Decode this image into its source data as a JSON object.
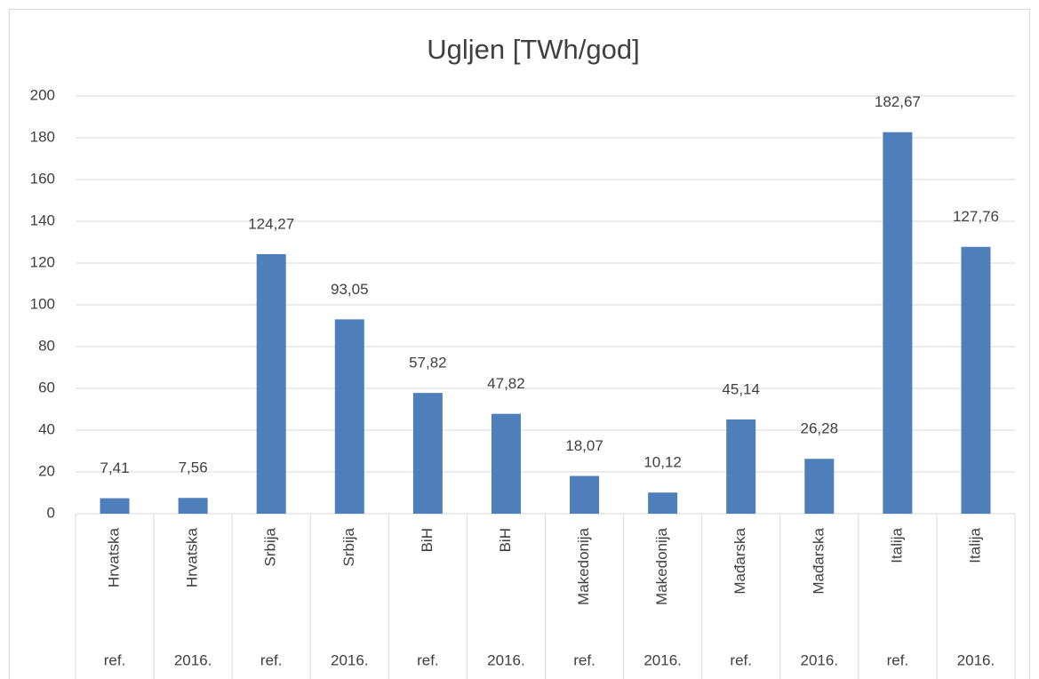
{
  "chart_data": {
    "type": "bar",
    "title": "Ugljen [TWh/god]",
    "categories": [
      "Hrvatska",
      "Hrvatska",
      "Srbija",
      "Srbija",
      "BiH",
      "BiH",
      "Makedonija",
      "Makedonija",
      "Mađarska",
      "Mađarska",
      "Italija",
      "Italija"
    ],
    "subcategories": [
      "ref.",
      "2016.",
      "ref.",
      "2016.",
      "ref.",
      "2016.",
      "ref.",
      "2016.",
      "ref.",
      "2016.",
      "ref.",
      "2016."
    ],
    "values": [
      7.41,
      7.56,
      124.27,
      93.05,
      57.82,
      47.82,
      18.07,
      10.12,
      45.14,
      26.28,
      182.67,
      127.76
    ],
    "value_labels": [
      "7,41",
      "7,56",
      "124,27",
      "93,05",
      "57,82",
      "47,82",
      "18,07",
      "10,12",
      "45,14",
      "26,28",
      "182,67",
      "127,76"
    ],
    "color": "#4e7fbb",
    "ylim": [
      0,
      200
    ],
    "yticks": [
      0,
      20,
      40,
      60,
      80,
      100,
      120,
      140,
      160,
      180,
      200
    ],
    "grid": true
  }
}
